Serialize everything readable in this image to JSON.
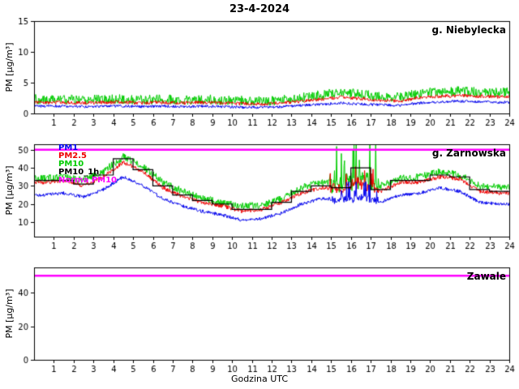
{
  "title": "23-4-2024",
  "axes": {
    "xlabel": "Godzina UTC",
    "ylabel": "PM [µg/m³]",
    "x_unit": "hour UTC"
  },
  "legend": [
    {
      "label": "PM1",
      "color": "#0000ee"
    },
    {
      "label": "PM2.5",
      "color": "#ee0000"
    },
    {
      "label": "PM10",
      "color": "#00cc00"
    },
    {
      "label": "PM10_1h",
      "color": "#000000"
    },
    {
      "label": "Norma PM10",
      "color": "#ff00ff"
    }
  ],
  "chart_data": [
    {
      "type": "line",
      "station": "g. Niebylecka",
      "xlim": [
        0,
        24
      ],
      "xticks": [
        1,
        2,
        3,
        4,
        5,
        6,
        7,
        8,
        9,
        10,
        11,
        12,
        13,
        14,
        15,
        16,
        17,
        18,
        19,
        20,
        21,
        22,
        23,
        24
      ],
      "ylim": [
        0,
        15
      ],
      "yticks": [
        0,
        5,
        10,
        15
      ],
      "series": [
        {
          "name": "PM10",
          "color": "#00cc00",
          "noise": 0.8,
          "hourly_values": [
            2.3,
            2.3,
            2.2,
            2.3,
            2.3,
            2.2,
            2.3,
            2.2,
            2.3,
            2.2,
            2.1,
            2.0,
            2.2,
            2.6,
            3.0,
            3.4,
            3.1,
            2.7,
            2.6,
            3.3,
            3.5,
            3.6,
            3.5,
            3.4
          ]
        },
        {
          "name": "PM2.5",
          "color": "#ee0000",
          "noise": 0.28,
          "hourly_values": [
            1.8,
            1.8,
            1.7,
            1.8,
            1.8,
            1.7,
            1.8,
            1.7,
            1.8,
            1.7,
            1.6,
            1.5,
            1.7,
            2.0,
            2.3,
            2.6,
            2.4,
            2.1,
            2.0,
            2.6,
            2.8,
            2.9,
            2.8,
            2.7
          ]
        },
        {
          "name": "PM1",
          "color": "#0000ee",
          "noise": 0.22,
          "hourly_values": [
            1.2,
            1.2,
            1.1,
            1.2,
            1.2,
            1.1,
            1.2,
            1.1,
            1.2,
            1.1,
            1.0,
            1.0,
            1.1,
            1.3,
            1.5,
            1.7,
            1.5,
            1.4,
            1.3,
            1.7,
            1.9,
            2.0,
            1.9,
            1.8
          ]
        }
      ],
      "step_series": null,
      "norm_line": null,
      "spike_window": null
    },
    {
      "type": "line",
      "station": "g. Zarnowska",
      "xlim": [
        0,
        24
      ],
      "xticks": [
        1,
        2,
        3,
        4,
        5,
        6,
        7,
        8,
        9,
        10,
        11,
        12,
        13,
        14,
        15,
        16,
        17,
        18,
        19,
        20,
        21,
        22,
        23,
        24
      ],
      "ylim": [
        2,
        53
      ],
      "yticks": [
        10,
        20,
        30,
        40,
        50
      ],
      "series": [
        {
          "name": "PM10",
          "color": "#00cc00",
          "noise": 2.0,
          "spike_extra": 24,
          "hourly_values": [
            34,
            35,
            33,
            38,
            46,
            41,
            32,
            27,
            23,
            21,
            19,
            19,
            23,
            29,
            32,
            31,
            34,
            30,
            34,
            35,
            38,
            36,
            30,
            29
          ]
        },
        {
          "name": "PM2.5",
          "color": "#ee0000",
          "noise": 1.1,
          "spike_extra": 10,
          "hourly_values": [
            32,
            33,
            30,
            35,
            43,
            38,
            29,
            24,
            21,
            19,
            16,
            17,
            21,
            26,
            29,
            28,
            31,
            27,
            32,
            32,
            35,
            34,
            27,
            26
          ]
        },
        {
          "name": "PM1",
          "color": "#0000ee",
          "noise": 0.9,
          "spike_extra": 9,
          "hourly_values": [
            25,
            26,
            24,
            28,
            35,
            30,
            23,
            19,
            16,
            14,
            11,
            12,
            15,
            20,
            23,
            22,
            24,
            21,
            25,
            26,
            29,
            27,
            21,
            20
          ]
        }
      ],
      "step_series": {
        "name": "PM10_1h",
        "color": "#000000",
        "hourly_values": [
          33,
          33,
          31,
          36,
          45,
          39,
          30,
          25,
          22,
          20,
          17,
          17,
          21,
          27,
          30,
          29,
          40,
          28,
          33,
          33,
          36,
          35,
          28,
          27
        ]
      },
      "norm_line": {
        "label": "Norma PM10",
        "value": 50,
        "color": "#ff00ff"
      },
      "spike_window": {
        "from": 14.9,
        "to": 17.4
      }
    },
    {
      "type": "line",
      "station": "Zawale",
      "xlim": [
        0,
        24
      ],
      "xticks": [
        1,
        2,
        3,
        4,
        5,
        6,
        7,
        8,
        9,
        10,
        11,
        12,
        13,
        14,
        15,
        16,
        17,
        18,
        19,
        20,
        21,
        22,
        23,
        24
      ],
      "ylim": [
        0,
        55
      ],
      "yticks": [
        0,
        20,
        40
      ],
      "series": [],
      "step_series": null,
      "norm_line": {
        "label": "Norma PM10",
        "value": 50,
        "color": "#ff00ff"
      },
      "spike_window": null
    }
  ]
}
